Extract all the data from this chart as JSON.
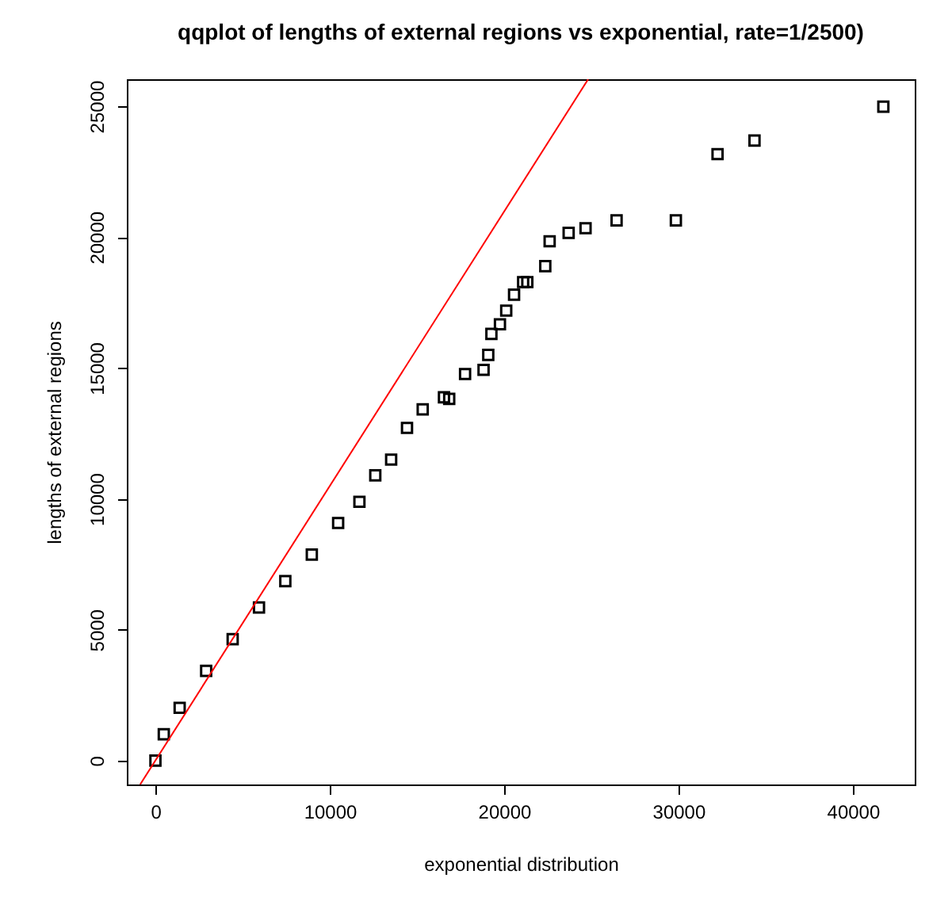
{
  "chart_data": {
    "type": "scatter",
    "title": "qqplot of lengths of external regions vs exponential, rate=1/2500)",
    "xlabel": "exponential distribution",
    "ylabel": "lengths of external regions",
    "xlim": [
      -1640,
      43550
    ],
    "ylim": [
      -910,
      26030
    ],
    "xticks": [
      0,
      10000,
      20000,
      30000,
      40000
    ],
    "yticks": [
      0,
      5000,
      10000,
      15000,
      20000,
      25000
    ],
    "grid": false,
    "marker": "square",
    "series": [
      {
        "color": "#000000",
        "x": [
          0,
          480,
          1390,
          2910,
          4430,
          5940,
          7450,
          8970,
          10480,
          11700,
          12610,
          13520,
          14430,
          15330,
          16550,
          16850,
          17760,
          18820,
          19090,
          19270,
          19760,
          20120,
          20570,
          21090,
          21330,
          22360,
          22610,
          23700,
          24670,
          26450,
          29850,
          32240,
          34360,
          41750
        ],
        "values": [
          0,
          1010,
          2020,
          3430,
          4640,
          5850,
          6860,
          7870,
          9080,
          9890,
          10900,
          11500,
          12710,
          13420,
          13880,
          13820,
          14770,
          14930,
          15500,
          16300,
          16670,
          17190,
          17800,
          18280,
          18280,
          18890,
          19840,
          20160,
          20340,
          20640,
          20640,
          23170,
          23690,
          24980
        ]
      },
      {
        "type": "line",
        "color": "#ff0000",
        "marker": "none",
        "line_style": "solid",
        "x": [
          -875,
          24820
        ],
        "values": [
          -910,
          26030
        ]
      }
    ]
  }
}
